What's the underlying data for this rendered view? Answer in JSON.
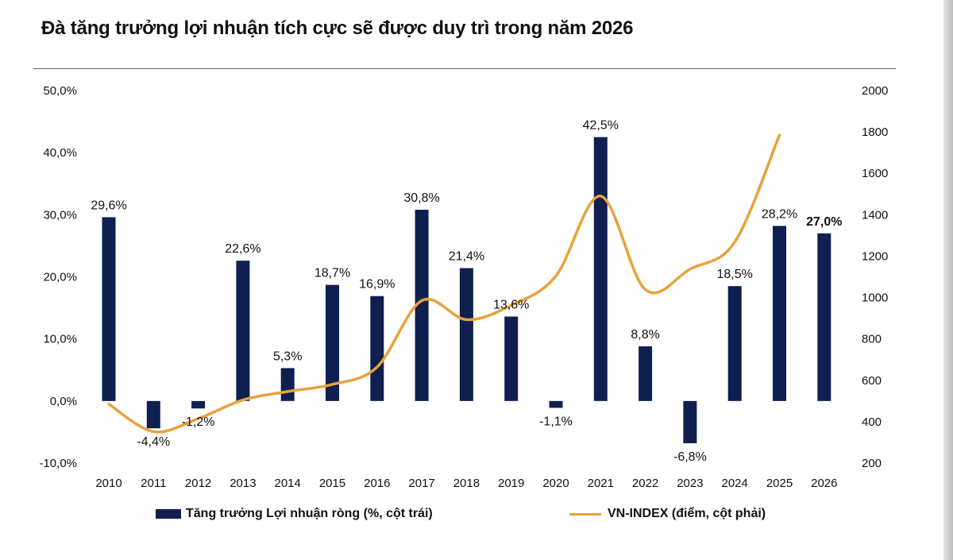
{
  "title": "Đà tăng trưởng lợi nhuận tích cực sẽ được duy trì trong năm 2026",
  "chart_data": {
    "type": "bar",
    "categories": [
      "2010",
      "2011",
      "2012",
      "2013",
      "2014",
      "2015",
      "2016",
      "2017",
      "2018",
      "2019",
      "2020",
      "2021",
      "2022",
      "2023",
      "2024",
      "2025",
      "2026"
    ],
    "series": [
      {
        "name": "Tăng trưởng Lợi nhuận ròng (%, cột trái)",
        "type": "bar",
        "axis": "left",
        "color": "#0f1f4f",
        "values": [
          29.6,
          -4.4,
          -1.2,
          22.6,
          5.3,
          18.7,
          16.9,
          30.8,
          21.4,
          13.6,
          -1.1,
          42.5,
          8.8,
          -6.8,
          18.5,
          28.2,
          27.0
        ],
        "labels": [
          "29,6%",
          "-4,4%",
          "-1,2%",
          "22,6%",
          "5,3%",
          "18,7%",
          "16,9%",
          "30,8%",
          "21,4%",
          "13,6%",
          "-1,1%",
          "42,5%",
          "8,8%",
          "-6,8%",
          "18,5%",
          "28,2%",
          "27,0%"
        ],
        "bold_label_index": 16
      },
      {
        "name": "VN-INDEX (điểm, cột phải)",
        "type": "line",
        "axis": "right",
        "color": "#e8a23c",
        "x": [
          "2010",
          "2011",
          "2012",
          "2013",
          "2014",
          "2015",
          "2016",
          "2017",
          "2018",
          "2019",
          "2020",
          "2021",
          "2022",
          "2023",
          "2024",
          "2025"
        ],
        "values": [
          485,
          352,
          415,
          505,
          546,
          580,
          664,
          985,
          893,
          962,
          1104,
          1490,
          1038,
          1137,
          1268,
          1785
        ]
      }
    ],
    "y_left": {
      "lim": [
        -10,
        50
      ],
      "ticks": [
        -10,
        0,
        10,
        20,
        30,
        40,
        50
      ],
      "tick_labels": [
        "-10,0%",
        "0,0%",
        "10,0%",
        "20,0%",
        "30,0%",
        "40,0%",
        "50,0%"
      ]
    },
    "y_right": {
      "lim": [
        200,
        2000
      ],
      "ticks": [
        200,
        400,
        600,
        800,
        1000,
        1200,
        1400,
        1600,
        1800,
        2000
      ],
      "tick_labels": [
        "200",
        "400",
        "600",
        "800",
        "1000",
        "1200",
        "1400",
        "1600",
        "1800",
        "2000"
      ]
    },
    "grid": false,
    "legend_position": "bottom"
  }
}
